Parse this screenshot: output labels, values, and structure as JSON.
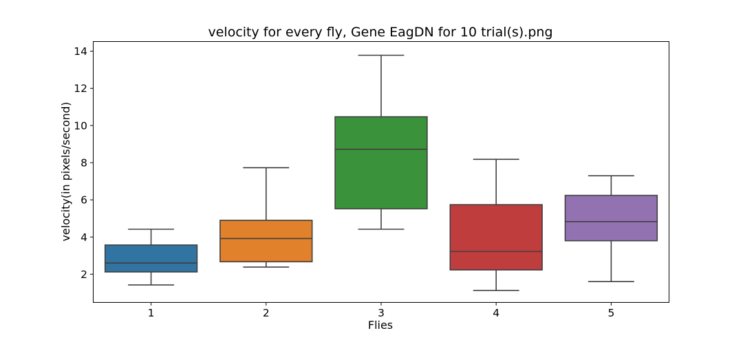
{
  "chart_data": {
    "type": "box",
    "title": "velocity for every fly, Gene EagDN for 10 trial(s).png",
    "xlabel": "Flies",
    "ylabel": "velocity(in pixels/second)",
    "ylim": [
      0.5,
      14.5
    ],
    "yticks": [
      2,
      4,
      6,
      8,
      10,
      12,
      14
    ],
    "grid": false,
    "categories": [
      "1",
      "2",
      "3",
      "4",
      "5"
    ],
    "boxes": [
      {
        "name": "1",
        "whisker_low": 1.42,
        "q1": 2.12,
        "median": 2.6,
        "q3": 3.57,
        "whisker_high": 4.42,
        "color": "#3274a1"
      },
      {
        "name": "2",
        "whisker_low": 2.38,
        "q1": 2.67,
        "median": 3.92,
        "q3": 4.9,
        "whisker_high": 7.73,
        "color": "#e1812c"
      },
      {
        "name": "3",
        "whisker_low": 4.42,
        "q1": 5.52,
        "median": 8.72,
        "q3": 10.47,
        "whisker_high": 13.78,
        "color": "#3a923a"
      },
      {
        "name": "4",
        "whisker_low": 1.12,
        "q1": 2.23,
        "median": 3.22,
        "q3": 5.74,
        "whisker_high": 8.18,
        "color": "#c03d3e"
      },
      {
        "name": "5",
        "whisker_low": 1.6,
        "q1": 3.8,
        "median": 4.83,
        "q3": 6.24,
        "whisker_high": 7.3,
        "color": "#9372b2"
      }
    ]
  }
}
